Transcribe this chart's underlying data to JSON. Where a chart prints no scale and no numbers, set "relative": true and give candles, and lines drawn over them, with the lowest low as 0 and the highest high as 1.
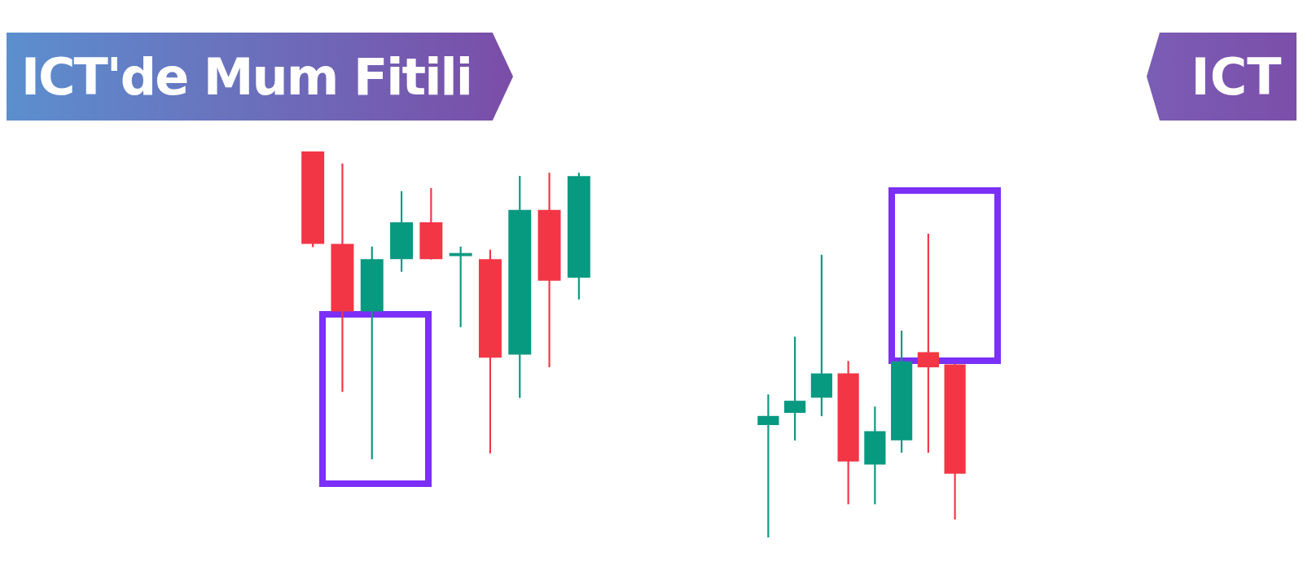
{
  "chart_data": [
    {
      "type": "candlestick",
      "title": "ICT'de Mum Fitili",
      "annotations": [
        "ICT"
      ],
      "relative": true,
      "categories": [
        null,
        null,
        null,
        null,
        null,
        null,
        null,
        null,
        null,
        null
      ],
      "ohlc": [
        [
          1.0,
          1.0,
          0.69,
          0.7
        ],
        [
          0.7,
          0.96,
          0.22,
          0.48
        ],
        [
          0.48,
          0.69,
          0.0,
          0.65
        ],
        [
          0.65,
          0.87,
          0.61,
          0.77
        ],
        [
          0.77,
          0.88,
          0.65,
          0.65
        ],
        [
          0.66,
          0.69,
          0.43,
          0.67
        ],
        [
          0.65,
          0.68,
          0.02,
          0.33
        ],
        [
          0.34,
          0.92,
          0.2,
          0.81
        ],
        [
          0.81,
          0.93,
          0.3,
          0.58
        ],
        [
          0.59,
          0.93,
          0.52,
          0.92
        ]
      ],
      "colors": [
        "#f23645",
        "#f23645",
        "#089981",
        "#089981",
        "#f23645",
        "#089981",
        "#f23645",
        "#089981",
        "#f23645",
        "#089981"
      ]
    },
    {
      "type": "candlestick",
      "relative": true,
      "categories": [
        null,
        null,
        null,
        null,
        null,
        null,
        null,
        null
      ],
      "ohlc": [
        [
          0.37,
          0.47,
          0.0,
          0.4
        ],
        [
          0.41,
          0.66,
          0.32,
          0.45
        ],
        [
          0.46,
          0.93,
          0.4,
          0.54
        ],
        [
          0.54,
          0.58,
          0.11,
          0.25
        ],
        [
          0.24,
          0.43,
          0.11,
          0.35
        ],
        [
          0.32,
          0.68,
          0.28,
          0.58
        ],
        [
          0.61,
          1.0,
          0.28,
          0.56
        ],
        [
          0.57,
          0.57,
          0.06,
          0.21
        ]
      ],
      "colors": [
        "#089981",
        "#089981",
        "#089981",
        "#f23645",
        "#089981",
        "#089981",
        "#f23645",
        "#f23645"
      ]
    }
  ]
}
